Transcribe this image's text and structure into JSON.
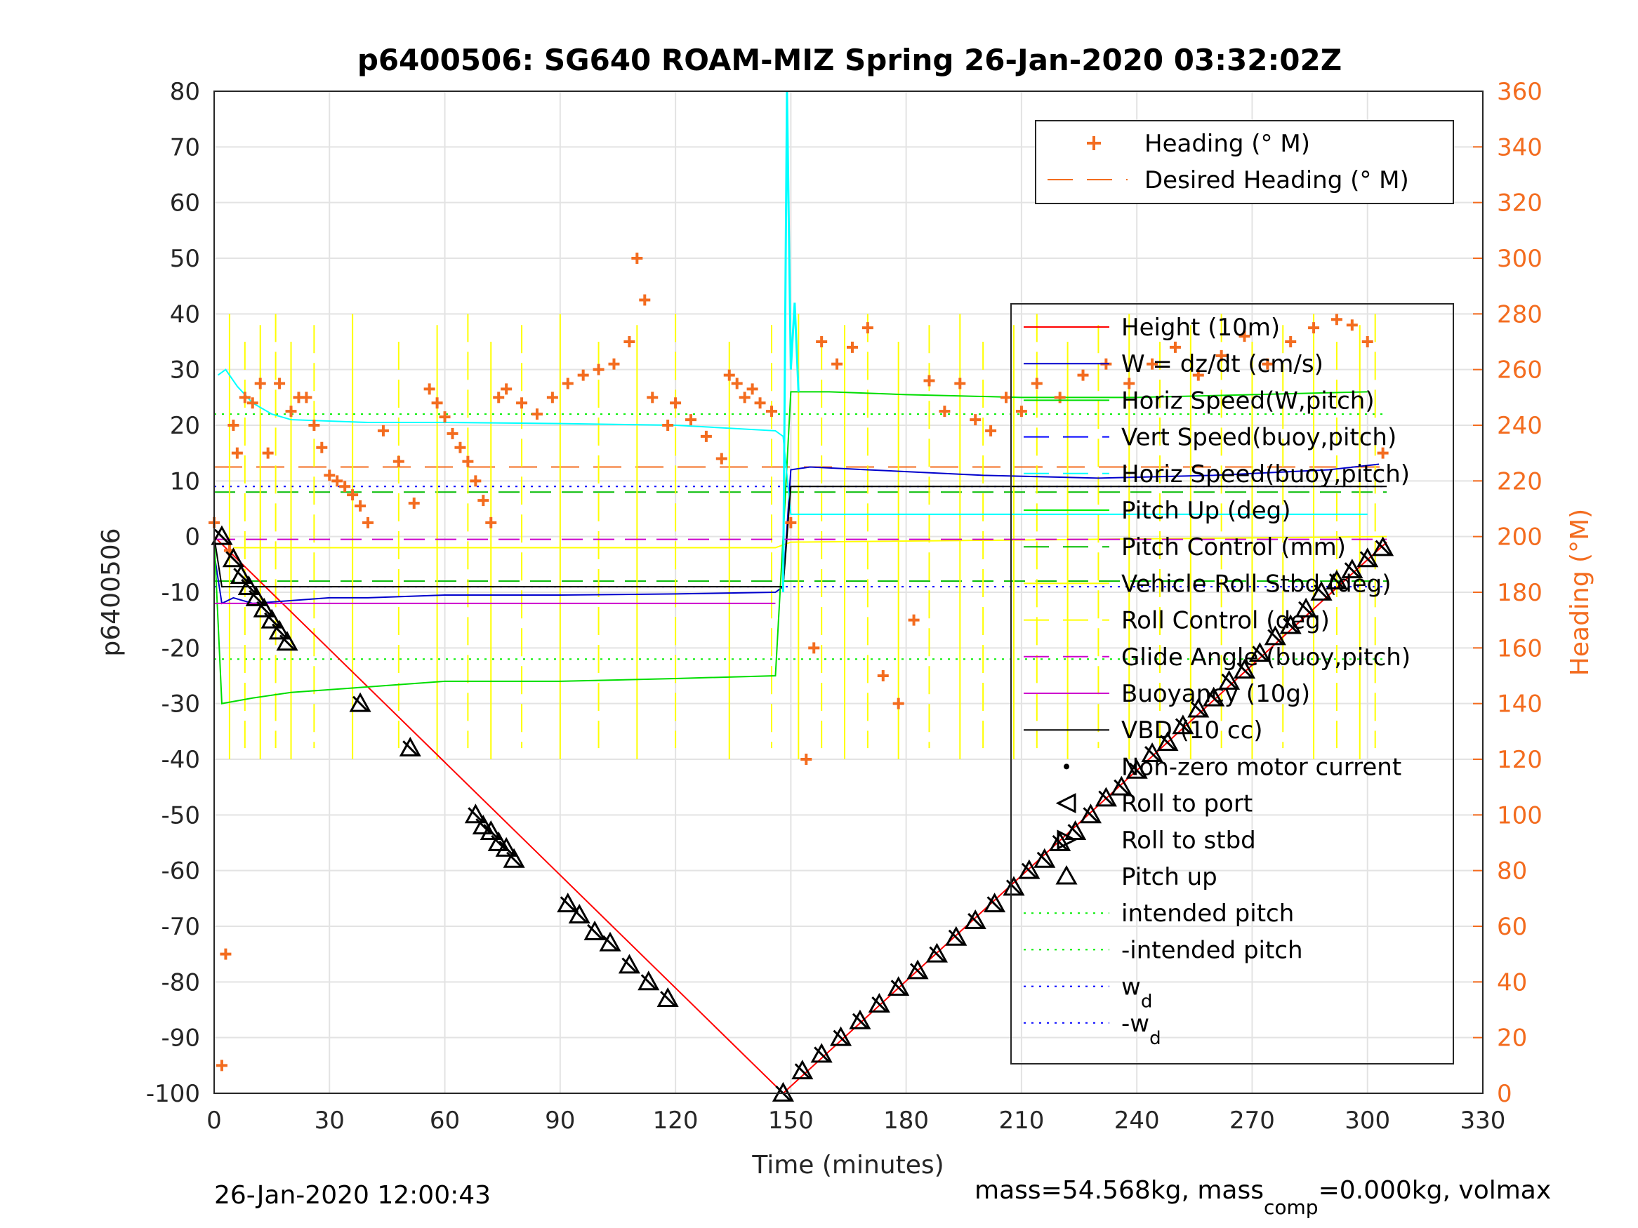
{
  "chart_data": {
    "type": "line",
    "title": "p6400506: SG640 ROAM-MIZ Spring 26-Jan-2020 03:32:02Z",
    "xlabel": "Time (minutes)",
    "ylabel": "p6400506",
    "y2label": "Heading (°M)",
    "xlim": [
      0,
      330
    ],
    "ylim": [
      -100,
      80
    ],
    "y2lim": [
      0,
      360
    ],
    "xticks": [
      "0",
      "30",
      "60",
      "90",
      "120",
      "150",
      "180",
      "210",
      "240",
      "270",
      "300",
      "330"
    ],
    "yticks": [
      "80",
      "70",
      "60",
      "50",
      "40",
      "30",
      "20",
      "10",
      "0",
      "-10",
      "-20",
      "-30",
      "-40",
      "-50",
      "-60",
      "-70",
      "-80",
      "-90",
      "-100"
    ],
    "y2ticks": [
      "360",
      "340",
      "320",
      "300",
      "280",
      "260",
      "240",
      "220",
      "200",
      "180",
      "160",
      "140",
      "120",
      "100",
      "80",
      "60",
      "40",
      "20",
      "0"
    ],
    "grid": true,
    "footer_left": "26-Jan-2020 12:00:43",
    "footer_right_prefix": "mass=54.568kg, mass",
    "footer_right_sub": "comp",
    "footer_right_suffix": "=0.000kg, volmax",
    "colors": {
      "height": "#ff0000",
      "w": "#0000cc",
      "horiz": "#00dd00",
      "vert_buoy": "#0000ff",
      "horiz_buoy": "#00ffff",
      "pitch_up": "#00ee00",
      "pitch_ctl": "#00bb00",
      "roll": "#ffff00",
      "glide": "#cc00cc",
      "buoy": "#cc00cc",
      "vbd": "#000000",
      "heading": "#f36c1f"
    },
    "legend_top": {
      "placement": "top-right",
      "entries": [
        "Heading (° M)",
        "Desired Heading (° M)"
      ]
    },
    "legend_main": {
      "placement": "right",
      "entries": [
        "Height (10m)",
        "W = dz/dt (cm/s)",
        "Horiz Speed(W,pitch)",
        "Vert Speed(buoy,pitch)",
        "Horiz Speed(buoy,pitch)",
        "Pitch Up (deg)",
        "Pitch Control (mm)",
        "Vehicle Roll Stbd (deg)",
        "Roll Control (deg)",
        "Glide Angle (buoy,pitch)",
        "Buoyancy (10g)",
        "VBD (10 cc)",
        "Non-zero motor current",
        "Roll to port",
        "Roll to stbd",
        "Pitch up",
        "intended pitch",
        "-intended pitch",
        "w",
        "-w"
      ],
      "subscript": "d"
    },
    "series": [
      {
        "key": "height",
        "values": [
          [
            0,
            0
          ],
          [
            148,
            -100
          ],
          [
            305,
            -1
          ]
        ]
      },
      {
        "key": "w",
        "values": [
          [
            0,
            -3
          ],
          [
            2,
            -12
          ],
          [
            5,
            -11
          ],
          [
            10,
            -12
          ],
          [
            30,
            -11
          ],
          [
            40,
            -11
          ],
          [
            60,
            -10.5
          ],
          [
            90,
            -10.5
          ],
          [
            120,
            -10.3
          ],
          [
            146,
            -10
          ],
          [
            148,
            -9
          ],
          [
            150,
            12
          ],
          [
            155,
            12.5
          ],
          [
            170,
            12
          ],
          [
            200,
            11
          ],
          [
            230,
            10.5
          ],
          [
            260,
            11
          ],
          [
            290,
            12
          ],
          [
            303,
            13
          ]
        ]
      },
      {
        "key": "horiz",
        "values": [
          [
            0,
            0
          ],
          [
            2,
            -30
          ],
          [
            10,
            -29
          ],
          [
            20,
            -28
          ],
          [
            40,
            -27
          ],
          [
            60,
            -26
          ],
          [
            90,
            -26
          ],
          [
            120,
            -25.5
          ],
          [
            146,
            -25
          ],
          [
            148,
            0
          ],
          [
            150,
            26
          ],
          [
            160,
            26
          ],
          [
            180,
            25.5
          ],
          [
            210,
            25
          ],
          [
            240,
            25
          ],
          [
            270,
            25.5
          ],
          [
            300,
            26
          ]
        ]
      },
      {
        "key": "horiz_buoy",
        "values": [
          [
            1,
            29
          ],
          [
            3,
            30
          ],
          [
            6,
            27
          ],
          [
            10,
            24
          ],
          [
            15,
            22
          ],
          [
            20,
            21
          ],
          [
            40,
            20.5
          ],
          [
            60,
            20.5
          ],
          [
            90,
            20.3
          ],
          [
            120,
            20
          ],
          [
            146,
            19
          ],
          [
            148,
            18
          ],
          [
            150,
            4
          ],
          [
            300,
            4
          ]
        ]
      },
      {
        "key": "vbd",
        "values": [
          [
            0,
            0
          ],
          [
            2,
            -9
          ],
          [
            146,
            -9
          ],
          [
            148,
            -9
          ],
          [
            150,
            9
          ],
          [
            305,
            9
          ]
        ]
      },
      {
        "key": "glide",
        "values": [
          [
            0,
            -0.5
          ],
          [
            305,
            -0.5
          ]
        ]
      },
      {
        "key": "buoy",
        "values": [
          [
            0,
            -12
          ],
          [
            146,
            -12
          ]
        ]
      }
    ],
    "reference_lines": [
      {
        "key": "intended_pitch_pos",
        "y": 22
      },
      {
        "key": "intended_pitch_neg",
        "y": -22
      },
      {
        "key": "wd_pos",
        "y": 9
      },
      {
        "key": "wd_neg",
        "y": -9
      },
      {
        "key": "pitch_ctl_neg",
        "y": -8
      },
      {
        "key": "pitch_ctl_pos",
        "y": 8
      }
    ],
    "spike": [
      [
        148,
        -10
      ],
      [
        149,
        80
      ],
      [
        150,
        30
      ],
      [
        151,
        42
      ],
      [
        152,
        26
      ]
    ],
    "roll_control_spikes_x": [
      4,
      8,
      12,
      16,
      20,
      26,
      36,
      48,
      58,
      66,
      72,
      80,
      90,
      100,
      110,
      120,
      134,
      145,
      152,
      158,
      164,
      170,
      178,
      186,
      194,
      200,
      208,
      214,
      222,
      230,
      238,
      246,
      254,
      262,
      270,
      278,
      286,
      292,
      298,
      302
    ],
    "heading": [
      [
        0,
        205
      ],
      [
        2,
        10
      ],
      [
        3,
        50
      ],
      [
        4,
        195
      ],
      [
        5,
        240
      ],
      [
        6,
        230
      ],
      [
        8,
        250
      ],
      [
        10,
        248
      ],
      [
        12,
        255
      ],
      [
        14,
        230
      ],
      [
        17,
        255
      ],
      [
        20,
        245
      ],
      [
        22,
        250
      ],
      [
        24,
        250
      ],
      [
        26,
        240
      ],
      [
        28,
        232
      ],
      [
        30,
        222
      ],
      [
        32,
        220
      ],
      [
        34,
        218
      ],
      [
        36,
        215
      ],
      [
        38,
        211
      ],
      [
        40,
        205
      ],
      [
        44,
        238
      ],
      [
        48,
        227
      ],
      [
        52,
        212
      ],
      [
        56,
        253
      ],
      [
        58,
        248
      ],
      [
        60,
        243
      ],
      [
        62,
        237
      ],
      [
        64,
        232
      ],
      [
        66,
        227
      ],
      [
        68,
        220
      ],
      [
        70,
        213
      ],
      [
        72,
        205
      ],
      [
        74,
        250
      ],
      [
        76,
        253
      ],
      [
        80,
        248
      ],
      [
        84,
        244
      ],
      [
        88,
        250
      ],
      [
        92,
        255
      ],
      [
        96,
        258
      ],
      [
        100,
        260
      ],
      [
        104,
        262
      ],
      [
        108,
        270
      ],
      [
        110,
        300
      ],
      [
        112,
        285
      ],
      [
        114,
        250
      ],
      [
        118,
        240
      ],
      [
        120,
        248
      ],
      [
        124,
        242
      ],
      [
        128,
        236
      ],
      [
        132,
        228
      ],
      [
        134,
        258
      ],
      [
        136,
        255
      ],
      [
        138,
        250
      ],
      [
        140,
        253
      ],
      [
        142,
        248
      ],
      [
        145,
        245
      ],
      [
        150,
        205
      ],
      [
        154,
        120
      ],
      [
        156,
        160
      ],
      [
        158,
        270
      ],
      [
        162,
        262
      ],
      [
        166,
        268
      ],
      [
        170,
        275
      ],
      [
        174,
        150
      ],
      [
        178,
        140
      ],
      [
        182,
        170
      ],
      [
        186,
        256
      ],
      [
        190,
        245
      ],
      [
        194,
        255
      ],
      [
        198,
        242
      ],
      [
        202,
        238
      ],
      [
        206,
        250
      ],
      [
        210,
        245
      ],
      [
        214,
        255
      ],
      [
        220,
        250
      ],
      [
        226,
        258
      ],
      [
        232,
        262
      ],
      [
        238,
        255
      ],
      [
        244,
        262
      ],
      [
        250,
        268
      ],
      [
        256,
        258
      ],
      [
        262,
        265
      ],
      [
        268,
        272
      ],
      [
        274,
        262
      ],
      [
        280,
        270
      ],
      [
        286,
        275
      ],
      [
        292,
        278
      ],
      [
        296,
        276
      ],
      [
        300,
        270
      ],
      [
        304,
        230
      ]
    ],
    "desired_heading": [
      [
        0,
        225
      ],
      [
        146,
        225
      ],
      [
        150,
        225
      ],
      [
        305,
        225
      ]
    ],
    "markers_pitch_up": [
      [
        2,
        0
      ],
      [
        5,
        -4
      ],
      [
        7,
        -7
      ],
      [
        9,
        -9
      ],
      [
        11,
        -11
      ],
      [
        13,
        -13
      ],
      [
        15,
        -15
      ],
      [
        17,
        -17
      ],
      [
        19,
        -19
      ],
      [
        38,
        -30
      ],
      [
        51,
        -38
      ],
      [
        68,
        -50
      ],
      [
        70,
        -52
      ],
      [
        72,
        -53
      ],
      [
        74,
        -55
      ],
      [
        76,
        -56
      ],
      [
        78,
        -58
      ],
      [
        92,
        -66
      ],
      [
        95,
        -68
      ],
      [
        99,
        -71
      ],
      [
        103,
        -73
      ],
      [
        108,
        -77
      ],
      [
        113,
        -80
      ],
      [
        118,
        -83
      ],
      [
        148,
        -100
      ],
      [
        153,
        -96
      ],
      [
        158,
        -93
      ],
      [
        163,
        -90
      ],
      [
        168,
        -87
      ],
      [
        173,
        -84
      ],
      [
        178,
        -81
      ],
      [
        183,
        -78
      ],
      [
        188,
        -75
      ],
      [
        193,
        -72
      ],
      [
        198,
        -69
      ],
      [
        203,
        -66
      ],
      [
        208,
        -63
      ],
      [
        212,
        -60
      ],
      [
        216,
        -58
      ],
      [
        220,
        -55
      ],
      [
        224,
        -53
      ],
      [
        228,
        -50
      ],
      [
        232,
        -47
      ],
      [
        236,
        -45
      ],
      [
        240,
        -42
      ],
      [
        244,
        -39
      ],
      [
        248,
        -37
      ],
      [
        252,
        -34
      ],
      [
        256,
        -31
      ],
      [
        260,
        -29
      ],
      [
        264,
        -26
      ],
      [
        268,
        -24
      ],
      [
        272,
        -21
      ],
      [
        276,
        -18
      ],
      [
        280,
        -16
      ],
      [
        284,
        -13
      ],
      [
        288,
        -10
      ],
      [
        292,
        -8
      ],
      [
        296,
        -6
      ],
      [
        300,
        -4
      ],
      [
        304,
        -2
      ]
    ]
  }
}
